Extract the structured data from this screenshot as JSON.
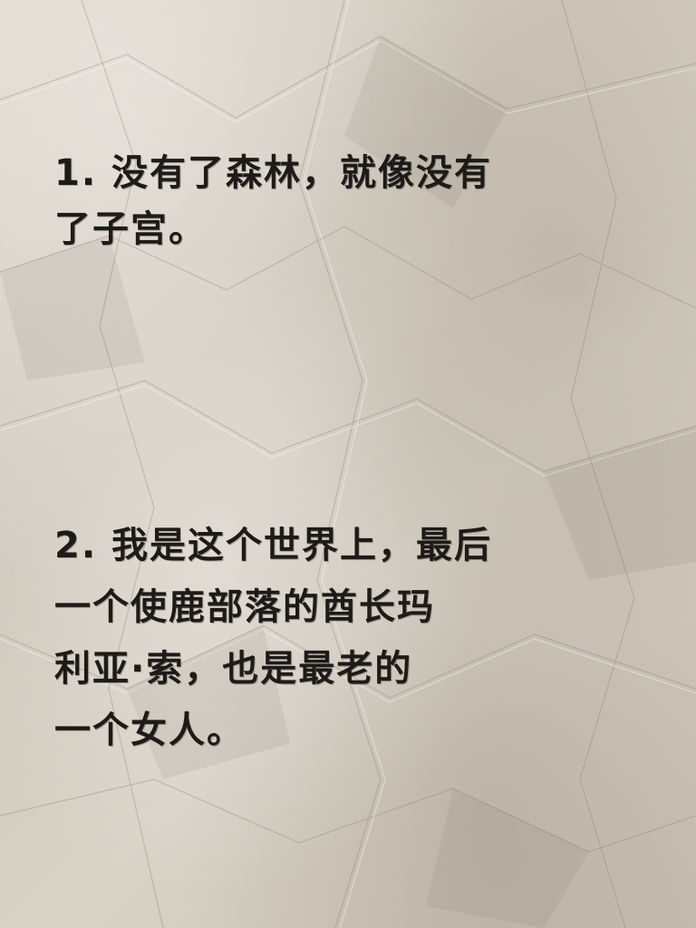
{
  "notes": [
    {
      "lines": [
        "1. 没有了森林，就像没有",
        "了子宫。"
      ]
    },
    {
      "lines": [
        "2. 我是这个世界上，最后",
        "一个使鹿部落的酋长玛",
        "利亚·索，也是最老的",
        "一个女人。"
      ]
    }
  ],
  "colors": {
    "paper": "#d8d1c6",
    "ink": "#1d1b18"
  }
}
